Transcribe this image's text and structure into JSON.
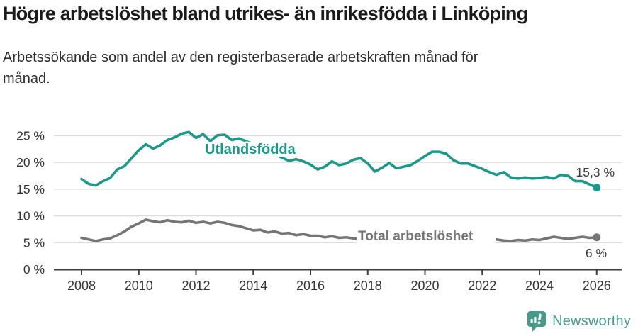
{
  "header": {
    "title": "Högre arbetslöshet bland utrikes- än inrikesfödda i Linköping",
    "subtitle_line1": "Arbetssökande som andel av den registerbaserade arbetskraften månad för",
    "subtitle_line2": "månad."
  },
  "footer": {
    "brand": "Newsworthy"
  },
  "colors": {
    "series_foreign_born": "#179a8b",
    "series_total": "#757575",
    "axis": "#3d3d3d",
    "grid": "#dcdcdc",
    "tick_text": "#333333",
    "value_label": "#3a3a3a",
    "logo": "#459a8c",
    "title_text": "#1a1a1a"
  },
  "chart_data": {
    "type": "line",
    "title": "Högre arbetslöshet bland utrikes- än inrikesfödda i Linköping",
    "subtitle": "Arbetssökande som andel av den registerbaserade arbetskraften månad för månad.",
    "xlabel": "",
    "ylabel": "",
    "grid": "horizontal",
    "legend_position": "inline-labels",
    "x_start": 2008,
    "x_step": 0.25,
    "x_ticks": [
      2008,
      2010,
      2012,
      2014,
      2016,
      2018,
      2020,
      2022,
      2024,
      2026
    ],
    "x_range": [
      2007.05,
      2026.9
    ],
    "y_range": [
      0,
      27.8
    ],
    "y_ticks": [
      {
        "value": 0,
        "label": "0 %"
      },
      {
        "value": 5,
        "label": "5 %"
      },
      {
        "value": 10,
        "label": "10 %"
      },
      {
        "value": 15,
        "label": "15 %"
      },
      {
        "value": 20,
        "label": "20 %"
      },
      {
        "value": 25,
        "label": "25 %"
      }
    ],
    "series": [
      {
        "name": "Utlandsfödda",
        "color": "#179a8b",
        "end_label": "15,3 %",
        "end_value": 15.3,
        "values": [
          16.9,
          16.0,
          15.7,
          16.5,
          17.1,
          18.7,
          19.3,
          20.8,
          22.3,
          23.4,
          22.6,
          23.2,
          24.2,
          24.7,
          25.4,
          25.7,
          24.6,
          25.3,
          24.0,
          25.1,
          25.2,
          24.2,
          24.5,
          24.0,
          23.4,
          22.8,
          22.2,
          21.5,
          20.9,
          20.3,
          20.6,
          20.2,
          19.6,
          18.7,
          19.2,
          20.2,
          19.5,
          19.8,
          20.5,
          20.8,
          19.8,
          18.3,
          19.0,
          19.9,
          18.9,
          19.2,
          19.5,
          20.3,
          21.2,
          22.0,
          22.0,
          21.6,
          20.4,
          19.8,
          19.8,
          19.3,
          18.8,
          18.2,
          17.7,
          18.2,
          17.2,
          17.0,
          17.2,
          17.0,
          17.1,
          17.3,
          17.0,
          17.7,
          17.5,
          16.5,
          16.5,
          15.9,
          15.3
        ]
      },
      {
        "name": "Total arbetslöshet",
        "color": "#757575",
        "end_label": "6 %",
        "end_value": 6.0,
        "values": [
          5.9,
          5.6,
          5.3,
          5.6,
          5.8,
          6.4,
          7.1,
          8.0,
          8.6,
          9.3,
          9.0,
          8.8,
          9.2,
          8.9,
          8.8,
          9.1,
          8.7,
          8.9,
          8.6,
          8.9,
          8.7,
          8.3,
          8.1,
          7.7,
          7.3,
          7.4,
          6.9,
          7.1,
          6.7,
          6.8,
          6.4,
          6.6,
          6.3,
          6.3,
          6.0,
          6.2,
          5.9,
          6.0,
          5.8,
          5.7,
          5.7,
          5.6,
          5.6,
          5.7,
          5.6,
          5.5,
          5.6,
          5.7,
          5.8,
          5.9,
          5.9,
          5.8,
          5.8,
          5.7,
          5.7,
          5.6,
          5.6,
          5.6,
          5.6,
          5.4,
          5.3,
          5.5,
          5.4,
          5.6,
          5.5,
          5.8,
          6.1,
          5.9,
          5.7,
          5.9,
          6.1,
          5.9,
          6.0
        ]
      }
    ]
  }
}
